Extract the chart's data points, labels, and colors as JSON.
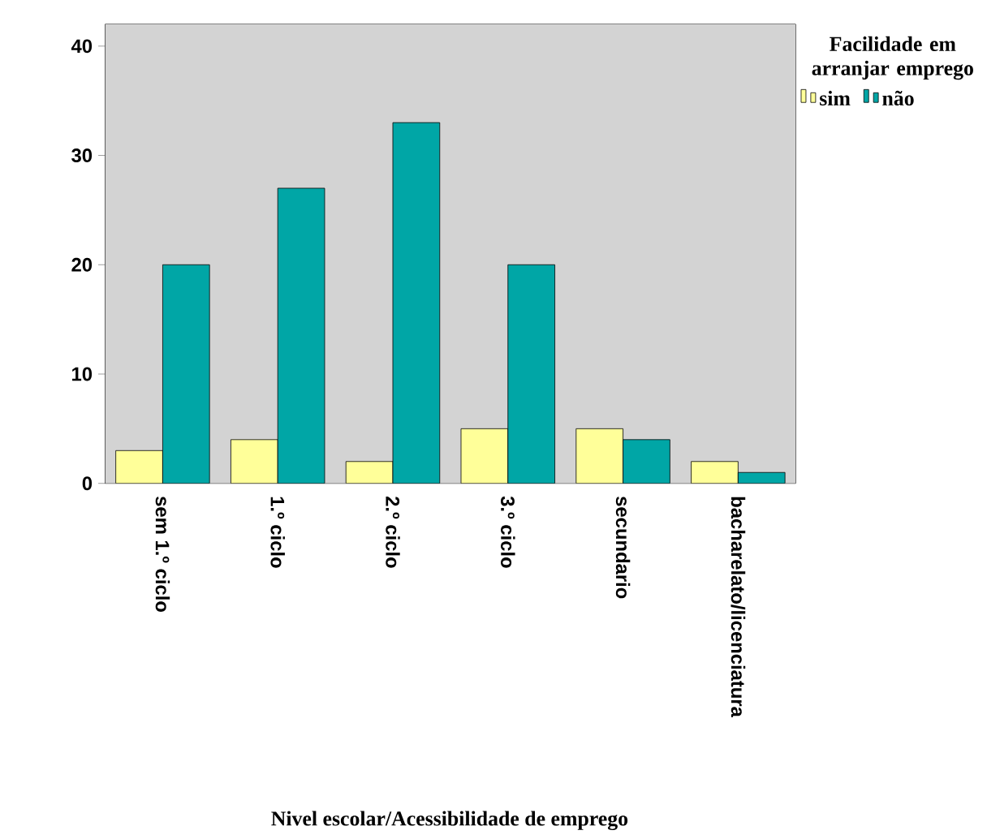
{
  "chart_data": {
    "type": "bar",
    "xlabel": "Nivel escolar/Acessibilidade de emprego",
    "legend_title": "Facilidade em arranjar emprego",
    "categories": [
      "sem 1.º ciclo",
      "1.º ciclo",
      "2.º ciclo",
      "3.º ciclo",
      "secundario",
      "bacharelato/licenciatura"
    ],
    "series": [
      {
        "name": "sim",
        "color": "#ffff99",
        "values": [
          3,
          4,
          2,
          5,
          5,
          2
        ]
      },
      {
        "name": "não",
        "color": "#00a6a6",
        "values": [
          20,
          27,
          33,
          20,
          4,
          1
        ]
      }
    ],
    "ylim": [
      0,
      42
    ],
    "yticks": [
      0,
      10,
      20,
      30,
      40
    ],
    "legend": "top right"
  }
}
